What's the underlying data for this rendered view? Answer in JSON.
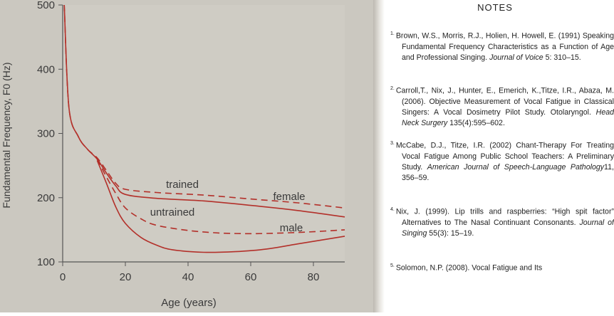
{
  "chart_data": {
    "type": "line",
    "ylabel": "Fundamental Frequency, F0 (Hz)",
    "xlabel": "Age (years)",
    "xlim": [
      0,
      90
    ],
    "ylim": [
      100,
      500
    ],
    "xticks": [
      "0",
      "20",
      "40",
      "60",
      "80"
    ],
    "yticks": [
      "100",
      "200",
      "300",
      "400",
      "500"
    ],
    "annotations": [
      "trained",
      "untrained",
      "female",
      "male"
    ],
    "series": [
      {
        "name": "female trained",
        "style": "dashed",
        "x": [
          0.5,
          2,
          5,
          8,
          11,
          14,
          17,
          20,
          30,
          45,
          60,
          75,
          90
        ],
        "y": [
          500,
          340,
          295,
          275,
          262,
          242,
          222,
          213,
          208,
          204,
          198,
          192,
          184
        ]
      },
      {
        "name": "female untrained",
        "style": "solid",
        "x": [
          0.5,
          2,
          5,
          8,
          11,
          14,
          17,
          20,
          30,
          45,
          60,
          75,
          90
        ],
        "y": [
          500,
          340,
          295,
          275,
          260,
          238,
          218,
          205,
          199,
          195,
          188,
          180,
          170
        ]
      },
      {
        "name": "male trained",
        "style": "dashed",
        "x": [
          11,
          14,
          17,
          20,
          25,
          30,
          40,
          50,
          60,
          70,
          80,
          90
        ],
        "y": [
          260,
          232,
          206,
          184,
          167,
          157,
          149,
          145,
          144,
          145,
          147,
          150
        ]
      },
      {
        "name": "male untrained",
        "style": "solid",
        "x": [
          11,
          14,
          17,
          20,
          25,
          30,
          35,
          45,
          55,
          65,
          75,
          90
        ],
        "y": [
          258,
          222,
          185,
          160,
          138,
          126,
          119,
          115,
          116,
          120,
          128,
          140
        ]
      }
    ]
  },
  "notes": {
    "title": "NOTES",
    "refs": [
      {
        "num": "1.",
        "text": "Brown, W.S., Morris, R.J., Holien, H. Howell, E. (1991) Speaking Fundamental Frequency Characteristics as a Function of Age and Professional Singing. ",
        "journal": "Journal of Voice",
        "tail": " 5: 310–15."
      },
      {
        "num": "2.",
        "text": "Carroll,T., Nix, J., Hunter, E., Emerich, K.,Titze, I.R., Abaza, M. (2006). Objective Measurement of Vocal Fatigue in Classical Singers: A Vocal Dosimetry Pilot Study. Otolaryngol. ",
        "journal": "Head Neck Surgery",
        "tail": " 135(4):595–602."
      },
      {
        "num": "3.",
        "text": "McCabe, D.J., Titze, I.R. (2002) Chant-Therapy For Treating Vocal Fatigue Among Public School Teachers: A Preliminary Study. ",
        "journal": "American Journal of Speech-Language Pathology",
        "tail": "11, 356–59."
      },
      {
        "num": "4.",
        "text": "Nix, J. (1999). Lip trills and raspberries: “High spit factor” Alternatives to The Nasal Continuant Consonants. ",
        "journal": "Journal of Singing",
        "tail": " 55(3): 15–19."
      },
      {
        "num": "5.",
        "text": "Solomon, N.P. (2008). Vocal Fatigue and Its",
        "journal": "",
        "tail": ""
      }
    ]
  }
}
